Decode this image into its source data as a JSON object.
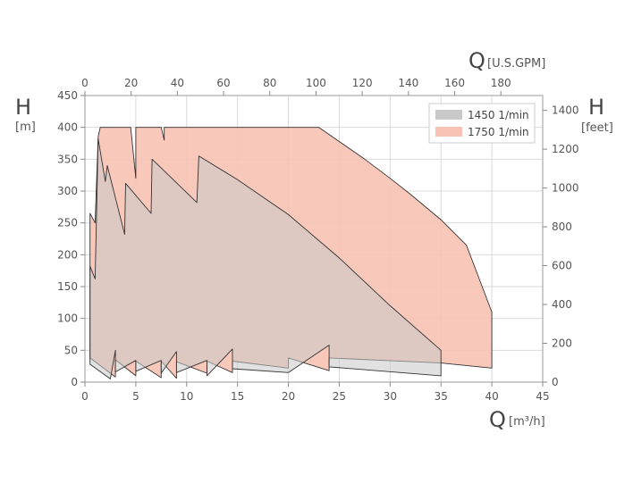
{
  "chart_data": {
    "type": "area",
    "colors": {
      "1450": "#c9c9c9",
      "1750": "#f7c3b4",
      "edge": "#333333"
    },
    "x_bottom": {
      "label": "Q",
      "unit": "[m³/h]",
      "range": [
        0,
        45
      ],
      "ticks": [
        0,
        5,
        10,
        15,
        20,
        25,
        30,
        35,
        40,
        45
      ]
    },
    "x_top": {
      "label": "Q",
      "unit": "[U.S.GPM]",
      "range": [
        0,
        198.1
      ],
      "ticks": [
        0,
        20,
        40,
        60,
        80,
        100,
        120,
        140,
        160,
        180
      ]
    },
    "y_left": {
      "label": "H",
      "unit": "[m]",
      "range": [
        0,
        450
      ],
      "ticks": [
        0,
        50,
        100,
        150,
        200,
        250,
        300,
        350,
        400,
        450
      ]
    },
    "y_right": {
      "label": "H",
      "unit": "[feet]",
      "range": [
        0,
        1476.4
      ],
      "ticks": [
        0,
        200,
        400,
        600,
        800,
        1000,
        1200,
        1400
      ]
    },
    "grid": true,
    "legend_position": "top-right",
    "series": [
      {
        "name": "1750 1/min",
        "key": "1750",
        "outline": [
          [
            0.5,
            185
          ],
          [
            0.5,
            265
          ],
          [
            1,
            250
          ],
          [
            1.3,
            385
          ],
          [
            1.5,
            400
          ],
          [
            4.5,
            400
          ],
          [
            5,
            320
          ],
          [
            5,
            400
          ],
          [
            7.5,
            400
          ],
          [
            7.8,
            380
          ],
          [
            7.8,
            400
          ],
          [
            23,
            400
          ],
          [
            27.5,
            350
          ],
          [
            30,
            320
          ],
          [
            32,
            295
          ],
          [
            35,
            255
          ],
          [
            37.5,
            215
          ],
          [
            40,
            110
          ],
          [
            40,
            22
          ],
          [
            35,
            30
          ],
          [
            24,
            38
          ],
          [
            24,
            18
          ],
          [
            20,
            38
          ],
          [
            20,
            22
          ],
          [
            14.5,
            33
          ],
          [
            14.5,
            15
          ],
          [
            12,
            33
          ],
          [
            12,
            14
          ],
          [
            9,
            32
          ],
          [
            9,
            6
          ],
          [
            7.5,
            33
          ],
          [
            7.5,
            7
          ],
          [
            5,
            33
          ],
          [
            5,
            10
          ],
          [
            3,
            35
          ],
          [
            3,
            8
          ],
          [
            0.5,
            38
          ]
        ]
      },
      {
        "name": "1450 1/min",
        "key": "1450",
        "outline": [
          [
            0.5,
            182
          ],
          [
            1,
            162
          ],
          [
            1.3,
            382
          ],
          [
            2,
            315
          ],
          [
            2.2,
            340
          ],
          [
            3.9,
            232
          ],
          [
            4,
            312
          ],
          [
            6.5,
            265
          ],
          [
            6.6,
            350
          ],
          [
            11,
            282
          ],
          [
            11.2,
            355
          ],
          [
            15,
            318
          ],
          [
            20,
            263
          ],
          [
            25,
            195
          ],
          [
            30,
            120
          ],
          [
            35,
            50
          ],
          [
            35,
            10
          ],
          [
            24,
            24
          ],
          [
            24,
            58
          ],
          [
            20,
            15
          ],
          [
            14.5,
            21
          ],
          [
            14.5,
            52
          ],
          [
            12,
            10
          ],
          [
            12,
            34
          ],
          [
            9,
            15
          ],
          [
            9,
            48
          ],
          [
            7.5,
            14
          ],
          [
            7.5,
            34
          ],
          [
            5,
            17
          ],
          [
            5,
            34
          ],
          [
            3,
            16
          ],
          [
            3,
            50
          ],
          [
            2.5,
            5
          ],
          [
            0.5,
            28
          ]
        ]
      }
    ]
  }
}
